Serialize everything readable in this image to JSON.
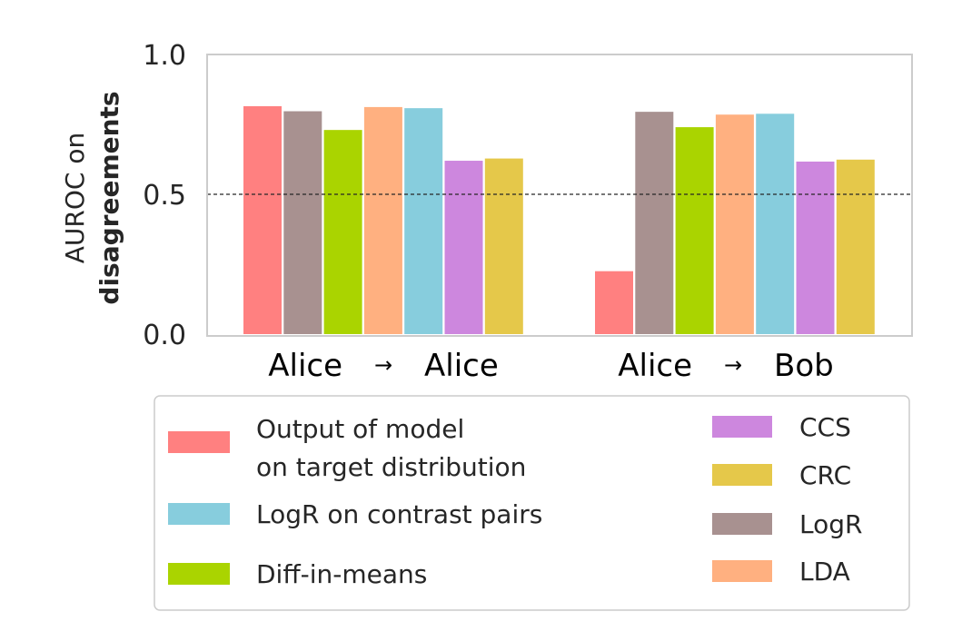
{
  "chart_data": {
    "type": "bar",
    "categories": [
      "Alice → Alice",
      "Alice → Bob"
    ],
    "category_parts": [
      {
        "from": "Alice",
        "arrow": "→",
        "to": "Alice"
      },
      {
        "from": "Alice",
        "arrow": "→",
        "to": "Bob"
      }
    ],
    "ylabel_line1": "AUROC on",
    "ylabel_line2": "disagreements",
    "ylim": [
      0,
      1.0
    ],
    "yticks": [
      "0.0",
      "0.5",
      "1.0"
    ],
    "ytick_values": [
      0.0,
      0.5,
      1.0
    ],
    "reference_line": 0.5,
    "grid": false,
    "legend_position": "bottom",
    "series": [
      {
        "name": "Output of model on target distribution",
        "legend_lines": [
          "Output of model",
          "on target distribution"
        ],
        "color": "#ff8080",
        "values": [
          0.815,
          0.225
        ]
      },
      {
        "name": "LogR",
        "legend_lines": [
          "LogR"
        ],
        "color": "#a89190",
        "values": [
          0.797,
          0.795
        ]
      },
      {
        "name": "Diff-in-means",
        "legend_lines": [
          "Diff-in-means"
        ],
        "color": "#aad400",
        "values": [
          0.73,
          0.74
        ]
      },
      {
        "name": "LDA",
        "legend_lines": [
          "LDA"
        ],
        "color": "#ffb080",
        "values": [
          0.812,
          0.785
        ]
      },
      {
        "name": "LogR on contrast pairs",
        "legend_lines": [
          "LogR on contrast pairs"
        ],
        "color": "#87cddd",
        "values": [
          0.808,
          0.788
        ]
      },
      {
        "name": "CCS",
        "legend_lines": [
          "CCS"
        ],
        "color": "#cd87de",
        "values": [
          0.62,
          0.617
        ]
      },
      {
        "name": "CRC",
        "legend_lines": [
          "CRC"
        ],
        "color": "#e5c84a",
        "values": [
          0.628,
          0.624
        ]
      }
    ],
    "legend_left_order": [
      0,
      4,
      2
    ],
    "legend_right_order": [
      5,
      6,
      1,
      3
    ]
  }
}
